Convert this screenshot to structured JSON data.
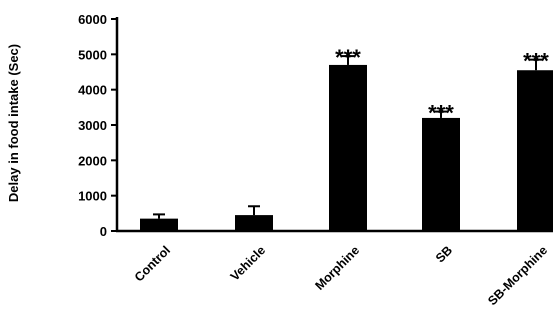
{
  "chart_data": {
    "type": "bar",
    "title": "",
    "xlabel": "",
    "ylabel": "Delay in food intake (Sec)",
    "ylim": [
      0,
      6000
    ],
    "yticks": [
      0,
      1000,
      2000,
      3000,
      4000,
      5000,
      6000
    ],
    "categories": [
      "Control",
      "Vehicle",
      "Morphine",
      "SB",
      "SB-Morphine"
    ],
    "values": [
      350,
      450,
      4700,
      3200,
      4550
    ],
    "errors": [
      120,
      250,
      250,
      180,
      300
    ],
    "significance": [
      "",
      "",
      "***",
      "***",
      "***"
    ],
    "bar_color": "#000000",
    "grid": false,
    "legend": "none"
  }
}
